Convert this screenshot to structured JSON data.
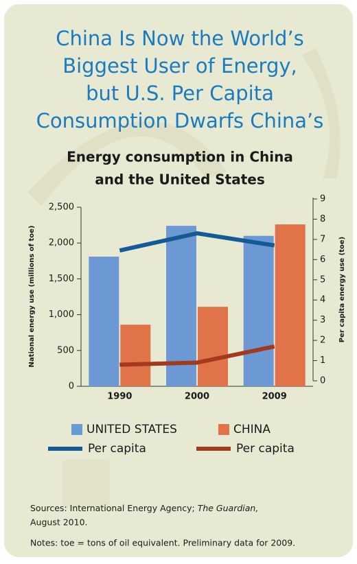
{
  "chart_data": {
    "type": "bar-line",
    "title": [
      "China Is Now the World’s",
      "Biggest User of Energy,",
      "but U.S. Per Capita",
      "Consumption Dwarfs China’s"
    ],
    "subtitle": [
      "Energy consumption in China",
      "and the United States"
    ],
    "categories": [
      "1990",
      "2000",
      "2009"
    ],
    "y_label": "National energy use (millions of toe)",
    "y2_label": "Per capita energy use (toe)",
    "ylim": [
      0,
      2500
    ],
    "yticks": [
      0,
      500,
      {
        "value": 1000,
        "label": "1,000"
      },
      {
        "value": 1500,
        "label": "1,500"
      },
      {
        "value": 2000,
        "label": "2,000"
      },
      {
        "value": 2500,
        "label": "2,500"
      }
    ],
    "y2lim": [
      0,
      9
    ],
    "y2ticks": [
      0,
      1,
      2,
      3,
      4,
      5,
      6,
      7,
      8,
      9
    ],
    "series": [
      {
        "name": "UNITED STATES",
        "type": "bar",
        "color": "#6c98d4",
        "values": [
          1810,
          2240,
          2100
        ]
      },
      {
        "name": "CHINA",
        "type": "bar",
        "color": "#e07448",
        "values": [
          860,
          1110,
          2260
        ]
      },
      {
        "name": "Per capita",
        "type": "line",
        "axis": "y2",
        "color": "#135a96",
        "values": [
          6.45,
          7.3,
          6.7
        ]
      },
      {
        "name": "Per capita",
        "type": "line",
        "axis": "y2",
        "color": "#a33a1e",
        "values": [
          0.8,
          0.9,
          1.7
        ]
      }
    ],
    "sources": [
      "Sources: International Energy Agency;",
      "The Guardian,",
      "August 2010."
    ],
    "notes": "Notes: toe = tons of oil equivalent. Preliminary data for 2009."
  }
}
